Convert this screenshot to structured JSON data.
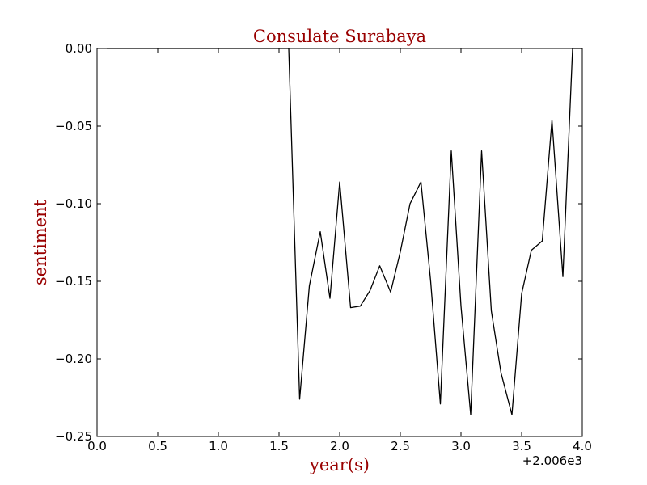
{
  "chart_data": {
    "type": "line",
    "title": "Consulate Surabaya",
    "xlabel": "year(s)",
    "ylabel": "sentiment",
    "x_offset_label": "+2.006e3",
    "xlim": [
      0.0,
      4.0
    ],
    "ylim": [
      -0.25,
      0.0
    ],
    "xticks": [
      0.0,
      0.5,
      1.0,
      1.5,
      2.0,
      2.5,
      3.0,
      3.5,
      4.0
    ],
    "xtick_labels": [
      "0.0",
      "0.5",
      "1.0",
      "1.5",
      "2.0",
      "2.5",
      "3.0",
      "3.5",
      "4.0"
    ],
    "yticks": [
      0.0,
      -0.05,
      -0.1,
      -0.15,
      -0.2,
      -0.25
    ],
    "ytick_labels": [
      "0.00",
      "−0.05",
      "−0.10",
      "−0.15",
      "−0.20",
      "−0.25"
    ],
    "grid": false,
    "colors": {
      "title": "#990000",
      "axis_label": "#990000",
      "line": "#000000"
    },
    "series": [
      {
        "x": [
          0.08,
          0.17,
          0.25,
          0.33,
          0.42,
          0.5,
          0.58,
          0.67,
          0.75,
          0.83,
          0.92,
          1.0,
          1.08,
          1.17,
          1.25,
          1.33,
          1.42,
          1.5,
          1.58,
          1.67,
          1.75,
          1.84,
          1.92,
          2.0,
          2.09,
          2.17,
          2.25,
          2.33,
          2.42,
          2.5,
          2.58,
          2.67,
          2.75,
          2.83,
          2.92,
          3.0,
          3.08,
          3.17,
          3.25,
          3.33,
          3.42,
          3.5,
          3.58,
          3.67,
          3.75,
          3.84,
          3.92,
          4.0
        ],
        "y": [
          0.0,
          0.0,
          0.0,
          0.0,
          0.0,
          0.0,
          0.0,
          0.0,
          0.0,
          0.0,
          0.0,
          0.0,
          0.0,
          0.0,
          0.0,
          0.0,
          0.0,
          0.0,
          0.0,
          -0.226,
          -0.153,
          -0.118,
          -0.161,
          -0.086,
          -0.167,
          -0.166,
          -0.156,
          -0.14,
          -0.157,
          -0.131,
          -0.1,
          -0.086,
          -0.15,
          -0.229,
          -0.066,
          -0.166,
          -0.236,
          -0.066,
          -0.169,
          -0.209,
          -0.236,
          -0.158,
          -0.13,
          -0.124,
          -0.046,
          -0.147,
          0.0,
          0.0
        ]
      }
    ]
  }
}
